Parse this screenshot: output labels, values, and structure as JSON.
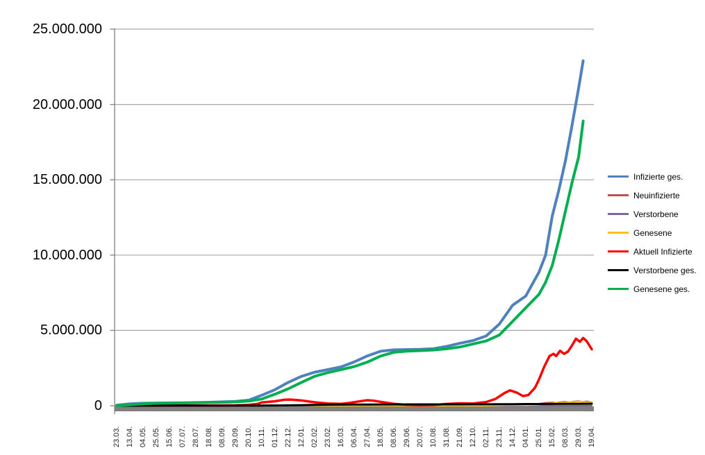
{
  "chart_data": {
    "type": "line",
    "title": "",
    "unit": "persons (values in millions)",
    "grid": "horizontal gridlines every 5.000.000",
    "legend_position": "right",
    "colors": {
      "gridline": "#A6A6A6",
      "axis": "#808080",
      "x_axis_bar": "#7F7F7F",
      "background": "#FFFFFF"
    },
    "y_axis": {
      "range_millions": [
        0,
        25
      ],
      "ticks": [
        {
          "value": 25,
          "label": "25.000.000"
        },
        {
          "value": 20,
          "label": "20.000.000"
        },
        {
          "value": 15,
          "label": "15.000.000"
        },
        {
          "value": 10,
          "label": "10.000.000"
        },
        {
          "value": 5,
          "label": "5.000.000"
        },
        {
          "value": 0,
          "label": "0"
        }
      ]
    },
    "x_axis": {
      "labels": [
        "23.03.",
        "13.04.",
        "04.05.",
        "25.05.",
        "15.06.",
        "07.07.",
        "28.07.",
        "18.08.",
        "08.09.",
        "29.09.",
        "20.10.",
        "10.11.",
        "01.12.",
        "22.12.",
        "12.01.",
        "02.02.",
        "23.02.",
        "16.03.",
        "06.04.",
        "27.04.",
        "18.05.",
        "08.06.",
        "29.06.",
        "20.07.",
        "10.08.",
        "31.08.",
        "21.09.",
        "12.10.",
        "02.11.",
        "23.11.",
        "14.12.",
        "04.01.",
        "25.01.",
        "15.02.",
        "08.03.",
        "29.03.",
        "19.04."
      ]
    },
    "series": [
      {
        "name": "Infizierte ges.",
        "color": "#4F81BD",
        "width": 4,
        "points_millions": [
          [
            0,
            0.03
          ],
          [
            1,
            0.13
          ],
          [
            2,
            0.165
          ],
          [
            3,
            0.18
          ],
          [
            4,
            0.19
          ],
          [
            5,
            0.2
          ],
          [
            6,
            0.21
          ],
          [
            7,
            0.23
          ],
          [
            8,
            0.26
          ],
          [
            9,
            0.29
          ],
          [
            10,
            0.37
          ],
          [
            11,
            0.7
          ],
          [
            12,
            1.07
          ],
          [
            13,
            1.55
          ],
          [
            14,
            1.95
          ],
          [
            15,
            2.23
          ],
          [
            16,
            2.4
          ],
          [
            17,
            2.58
          ],
          [
            18,
            2.91
          ],
          [
            19,
            3.31
          ],
          [
            20,
            3.62
          ],
          [
            21,
            3.71
          ],
          [
            22,
            3.73
          ],
          [
            23,
            3.75
          ],
          [
            24,
            3.79
          ],
          [
            25,
            3.94
          ],
          [
            26,
            4.15
          ],
          [
            27,
            4.33
          ],
          [
            28,
            4.63
          ],
          [
            29,
            5.43
          ],
          [
            30,
            6.67
          ],
          [
            31,
            7.29
          ],
          [
            32,
            8.87
          ],
          [
            32.5,
            10.0
          ],
          [
            33,
            12.58
          ],
          [
            33.5,
            14.3
          ],
          [
            34,
            16.25
          ],
          [
            34.5,
            18.6
          ],
          [
            35,
            21.07
          ],
          [
            35.35,
            22.9
          ]
        ]
      },
      {
        "name": "Neuinfizierte",
        "color": "#C0504D",
        "width": 2.5,
        "points_millions": [
          [
            0,
            0.004
          ],
          [
            4,
            0.003
          ],
          [
            8,
            0.008
          ],
          [
            10,
            0.012
          ],
          [
            11,
            0.02
          ],
          [
            12,
            0.022
          ],
          [
            13,
            0.028
          ],
          [
            14,
            0.018
          ],
          [
            15,
            0.012
          ],
          [
            16,
            0.009
          ],
          [
            17,
            0.012
          ],
          [
            18,
            0.02
          ],
          [
            19,
            0.022
          ],
          [
            20,
            0.012
          ],
          [
            21,
            0.006
          ],
          [
            22,
            0.003
          ],
          [
            23,
            0.002
          ],
          [
            24,
            0.006
          ],
          [
            25,
            0.012
          ],
          [
            26,
            0.011
          ],
          [
            27,
            0.009
          ],
          [
            28,
            0.016
          ],
          [
            29,
            0.05
          ],
          [
            29.5,
            0.06
          ],
          [
            30,
            0.055
          ],
          [
            30.5,
            0.04
          ],
          [
            31,
            0.055
          ],
          [
            31.5,
            0.09
          ],
          [
            32,
            0.13
          ],
          [
            32.5,
            0.19
          ],
          [
            33,
            0.21
          ],
          [
            33.3,
            0.18
          ],
          [
            33.6,
            0.23
          ],
          [
            34,
            0.26
          ],
          [
            34.3,
            0.21
          ],
          [
            34.6,
            0.27
          ],
          [
            35,
            0.3
          ],
          [
            35.3,
            0.25
          ],
          [
            35.6,
            0.29
          ],
          [
            36,
            0.22
          ]
        ]
      },
      {
        "name": "Verstorbene",
        "color": "#8064A2",
        "width": 2,
        "points_millions": [
          [
            0,
            0.001
          ],
          [
            12,
            0.002
          ],
          [
            24,
            0.001
          ],
          [
            36,
            0.002
          ]
        ]
      },
      {
        "name": "Genesene",
        "color": "#FFC000",
        "width": 2.5,
        "points_millions": [
          [
            0,
            0.002
          ],
          [
            4,
            0.003
          ],
          [
            8,
            0.005
          ],
          [
            10,
            0.008
          ],
          [
            11,
            0.015
          ],
          [
            12,
            0.02
          ],
          [
            13,
            0.022
          ],
          [
            14,
            0.026
          ],
          [
            15,
            0.02
          ],
          [
            16,
            0.013
          ],
          [
            17,
            0.011
          ],
          [
            18,
            0.016
          ],
          [
            19,
            0.02
          ],
          [
            20,
            0.018
          ],
          [
            21,
            0.01
          ],
          [
            22,
            0.005
          ],
          [
            23,
            0.003
          ],
          [
            24,
            0.004
          ],
          [
            25,
            0.009
          ],
          [
            26,
            0.012
          ],
          [
            27,
            0.01
          ],
          [
            28,
            0.012
          ],
          [
            29,
            0.03
          ],
          [
            30,
            0.05
          ],
          [
            30.5,
            0.045
          ],
          [
            31,
            0.04
          ],
          [
            31.5,
            0.05
          ],
          [
            32,
            0.08
          ],
          [
            32.5,
            0.12
          ],
          [
            33,
            0.16
          ],
          [
            33.5,
            0.19
          ],
          [
            34,
            0.22
          ],
          [
            34.5,
            0.24
          ],
          [
            35,
            0.27
          ],
          [
            35.5,
            0.25
          ],
          [
            36,
            0.21
          ]
        ]
      },
      {
        "name": "Aktuell Infizierte",
        "color": "#FF0000",
        "width": 3.5,
        "points_millions": [
          [
            0,
            0.022
          ],
          [
            0.5,
            0.055
          ],
          [
            1,
            0.05
          ],
          [
            1.5,
            0.035
          ],
          [
            2,
            0.024
          ],
          [
            3,
            0.012
          ],
          [
            4,
            0.008
          ],
          [
            5,
            0.007
          ],
          [
            6,
            0.009
          ],
          [
            7,
            0.013
          ],
          [
            8,
            0.018
          ],
          [
            9,
            0.028
          ],
          [
            10,
            0.06
          ],
          [
            10.7,
            0.13
          ],
          [
            11,
            0.22
          ],
          [
            12,
            0.3
          ],
          [
            12.7,
            0.4
          ],
          [
            13.2,
            0.41
          ],
          [
            14,
            0.35
          ],
          [
            15,
            0.23
          ],
          [
            16,
            0.15
          ],
          [
            17,
            0.13
          ],
          [
            17.7,
            0.2
          ],
          [
            18.5,
            0.31
          ],
          [
            19,
            0.37
          ],
          [
            19.5,
            0.33
          ],
          [
            20,
            0.26
          ],
          [
            21,
            0.13
          ],
          [
            22,
            0.055
          ],
          [
            23,
            0.03
          ],
          [
            24,
            0.05
          ],
          [
            25,
            0.12
          ],
          [
            26,
            0.16
          ],
          [
            27,
            0.15
          ],
          [
            28,
            0.25
          ],
          [
            28.7,
            0.45
          ],
          [
            29.4,
            0.85
          ],
          [
            29.8,
            1.02
          ],
          [
            30.3,
            0.88
          ],
          [
            30.8,
            0.64
          ],
          [
            31.2,
            0.72
          ],
          [
            31.7,
            1.2
          ],
          [
            32,
            1.75
          ],
          [
            32.4,
            2.6
          ],
          [
            32.8,
            3.3
          ],
          [
            33.1,
            3.45
          ],
          [
            33.3,
            3.3
          ],
          [
            33.6,
            3.65
          ],
          [
            33.9,
            3.45
          ],
          [
            34.2,
            3.6
          ],
          [
            34.5,
            4.0
          ],
          [
            34.8,
            4.45
          ],
          [
            35.1,
            4.25
          ],
          [
            35.35,
            4.5
          ],
          [
            35.6,
            4.3
          ],
          [
            36,
            3.75
          ]
        ]
      },
      {
        "name": "Verstorbene ges.",
        "color": "#000000",
        "width": 3,
        "points_millions": [
          [
            0,
            0.001
          ],
          [
            2,
            0.006
          ],
          [
            4,
            0.0085
          ],
          [
            6,
            0.009
          ],
          [
            8,
            0.0093
          ],
          [
            9,
            0.0095
          ],
          [
            10,
            0.0099
          ],
          [
            11,
            0.012
          ],
          [
            12,
            0.017
          ],
          [
            13,
            0.027
          ],
          [
            14,
            0.042
          ],
          [
            15,
            0.058
          ],
          [
            16,
            0.068
          ],
          [
            17,
            0.074
          ],
          [
            18,
            0.077
          ],
          [
            19,
            0.082
          ],
          [
            20,
            0.086
          ],
          [
            21,
            0.089
          ],
          [
            22,
            0.09
          ],
          [
            23,
            0.091
          ],
          [
            24,
            0.092
          ],
          [
            25,
            0.0925
          ],
          [
            26,
            0.093
          ],
          [
            27,
            0.0945
          ],
          [
            28,
            0.096
          ],
          [
            29,
            0.1
          ],
          [
            30,
            0.107
          ],
          [
            31,
            0.113
          ],
          [
            32,
            0.117
          ],
          [
            33,
            0.121
          ],
          [
            34,
            0.125
          ],
          [
            35,
            0.129
          ],
          [
            36,
            0.133
          ]
        ]
      },
      {
        "name": "Genesene ges.",
        "color": "#00B050",
        "width": 4,
        "points_millions": [
          [
            0,
            0.01
          ],
          [
            1,
            0.065
          ],
          [
            2,
            0.13
          ],
          [
            3,
            0.16
          ],
          [
            4,
            0.175
          ],
          [
            5,
            0.185
          ],
          [
            6,
            0.195
          ],
          [
            7,
            0.21
          ],
          [
            8,
            0.23
          ],
          [
            9,
            0.26
          ],
          [
            10,
            0.31
          ],
          [
            11,
            0.45
          ],
          [
            12,
            0.77
          ],
          [
            13,
            1.13
          ],
          [
            14,
            1.55
          ],
          [
            15,
            1.95
          ],
          [
            16,
            2.2
          ],
          [
            17,
            2.4
          ],
          [
            18,
            2.6
          ],
          [
            19,
            2.9
          ],
          [
            20,
            3.3
          ],
          [
            21,
            3.55
          ],
          [
            22,
            3.63
          ],
          [
            23,
            3.66
          ],
          [
            24,
            3.7
          ],
          [
            25,
            3.78
          ],
          [
            26,
            3.9
          ],
          [
            27,
            4.1
          ],
          [
            28,
            4.3
          ],
          [
            29,
            4.7
          ],
          [
            30,
            5.6
          ],
          [
            31,
            6.5
          ],
          [
            32,
            7.4
          ],
          [
            32.5,
            8.2
          ],
          [
            33,
            9.3
          ],
          [
            33.5,
            11.0
          ],
          [
            34,
            12.9
          ],
          [
            34.5,
            14.8
          ],
          [
            35,
            16.5
          ],
          [
            35.35,
            18.9
          ]
        ]
      }
    ]
  }
}
